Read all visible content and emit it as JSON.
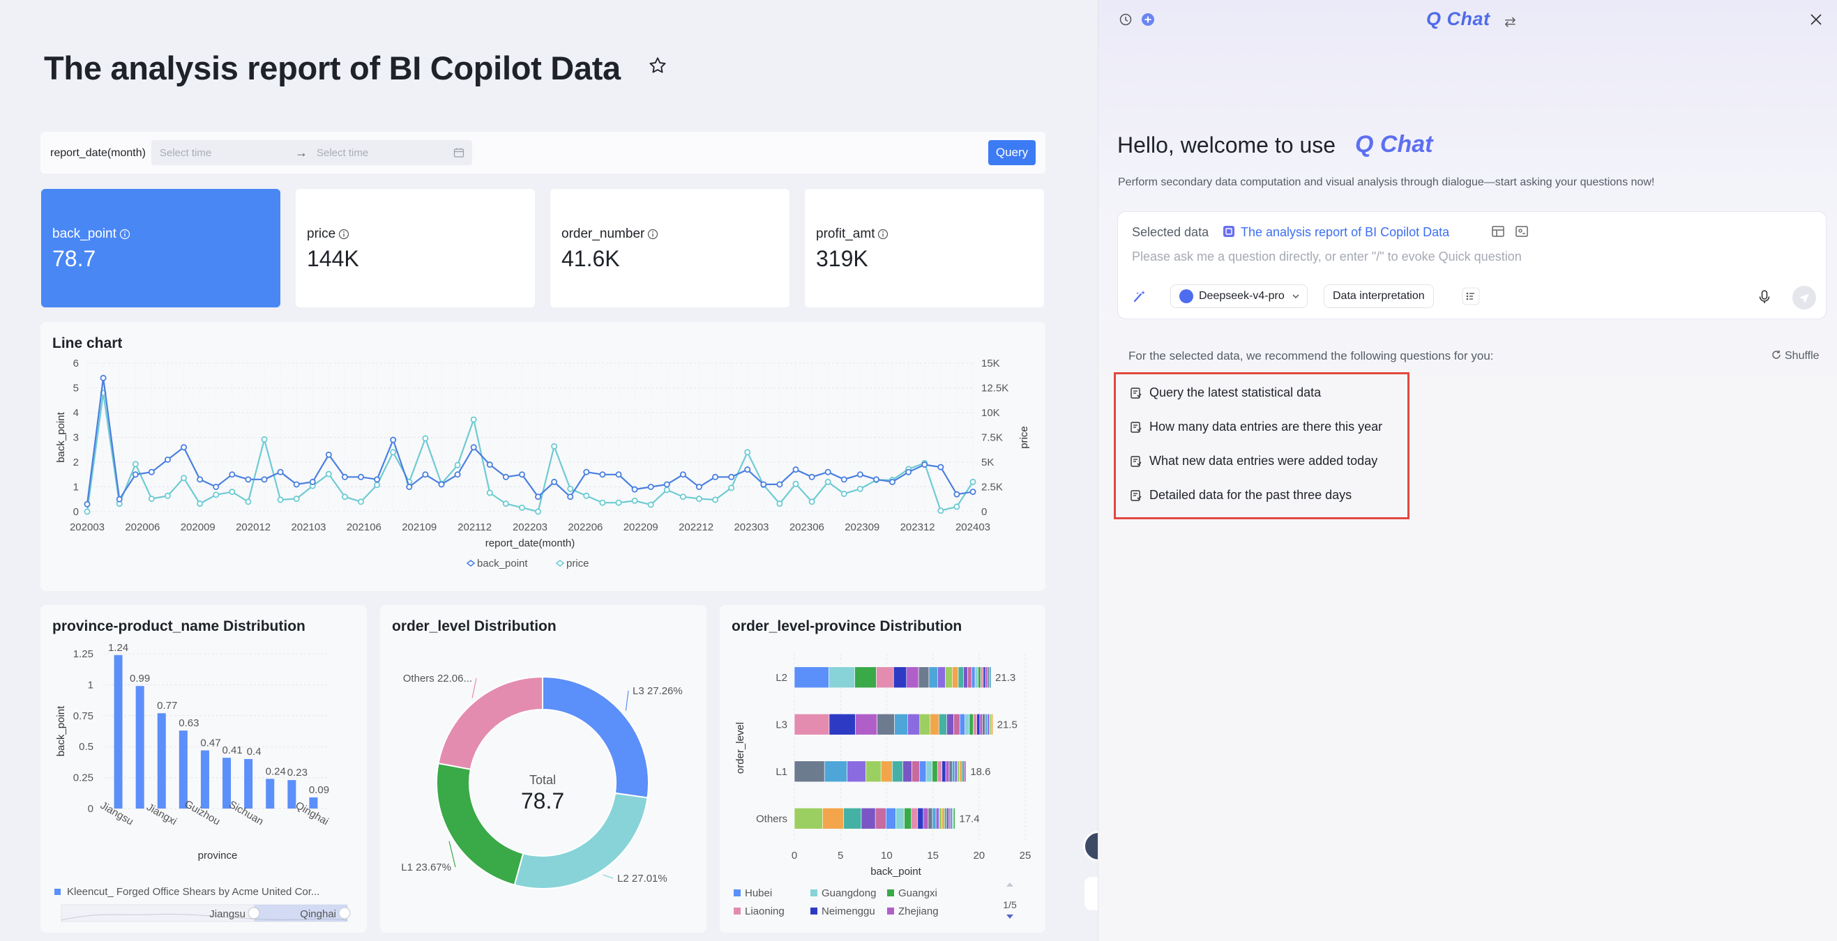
{
  "report": {
    "title": "The analysis report of BI Copilot Data",
    "filter": {
      "label": "report_date(month)",
      "start_placeholder": "Select time",
      "end_placeholder": "Select time",
      "separator": "→",
      "query_label": "Query"
    },
    "kpis": [
      {
        "label": "back_point",
        "value": "78.7",
        "active": true
      },
      {
        "label": "price",
        "value": "144K",
        "active": false
      },
      {
        "label": "order_number",
        "value": "41.6K",
        "active": false
      },
      {
        "label": "profit_amt",
        "value": "319K",
        "active": false
      }
    ]
  },
  "line_chart": {
    "title": "Line chart",
    "chart_data": {
      "type": "line",
      "xlabel": "report_date(month)",
      "ylabel": "back_point",
      "y2label": "price",
      "ylim": [
        0,
        6
      ],
      "y2lim": [
        0,
        15000
      ],
      "x_ticks": [
        "202003",
        "202006",
        "202009",
        "202012",
        "202103",
        "202106",
        "202109",
        "202112",
        "202203",
        "202206",
        "202209",
        "202212",
        "202303",
        "202306",
        "202309",
        "202312",
        "202403"
      ],
      "y_ticks": [
        "0",
        "1",
        "2",
        "3",
        "4",
        "5",
        "6"
      ],
      "y2_ticks": [
        "0",
        "2.5K",
        "5K",
        "7.5K",
        "10K",
        "12.5K",
        "15K"
      ],
      "legend": "bottom",
      "series": [
        {
          "name": "back_point",
          "color": "#4a7fe0",
          "axis": "left",
          "values": [
            0.3,
            5.4,
            0.5,
            1.5,
            1.6,
            2.1,
            2.6,
            1.3,
            1.0,
            1.5,
            1.3,
            1.3,
            1.6,
            1.1,
            1.2,
            2.3,
            1.4,
            1.4,
            1.3,
            2.9,
            1.0,
            1.5,
            1.1,
            1.5,
            2.6,
            1.9,
            1.4,
            1.5,
            0.6,
            1.2,
            0.6,
            1.6,
            1.5,
            1.5,
            0.9,
            1.0,
            1.1,
            1.5,
            1.0,
            1.4,
            1.4,
            1.7,
            1.1,
            1.1,
            1.7,
            1.4,
            1.6,
            1.3,
            1.5,
            1.3,
            1.2,
            1.6,
            1.9,
            1.8,
            0.7,
            0.8
          ]
        },
        {
          "name": "price",
          "color": "#6dcbd3",
          "axis": "right",
          "values": [
            0,
            12000,
            800,
            4800,
            1300,
            1600,
            3400,
            800,
            1700,
            2000,
            1000,
            7300,
            1200,
            1300,
            2600,
            3800,
            1500,
            1000,
            2700,
            6000,
            3000,
            7400,
            2800,
            4700,
            9300,
            1900,
            800,
            400,
            0,
            6600,
            2300,
            1600,
            900,
            900,
            1100,
            700,
            2200,
            1500,
            1300,
            1200,
            2400,
            6000,
            2700,
            800,
            2800,
            1000,
            3000,
            1800,
            2300,
            3200,
            3200,
            4300,
            4900,
            100,
            500,
            3000
          ]
        }
      ]
    }
  },
  "bar_chart": {
    "title": "province-product_name Distribution",
    "legend_label": "Kleencut_ Forged Office Shears by Acme United Cor...",
    "slider": {
      "start": "Jiangsu",
      "end": "Qinghai"
    },
    "chart_data": {
      "type": "bar",
      "xlabel": "province",
      "ylabel": "back_point",
      "ylim": [
        0,
        1.25
      ],
      "y_ticks": [
        "0",
        "0.25",
        "0.5",
        "0.75",
        "1",
        "1.25"
      ],
      "categories": [
        "Jiangsu",
        "",
        "Jiangxi",
        "",
        "Guizhou",
        "",
        "Sichuan",
        "",
        "",
        "Qinghai"
      ],
      "values": [
        1.24,
        0.99,
        0.77,
        0.63,
        0.47,
        0.41,
        0.4,
        0.24,
        0.23,
        0.09
      ],
      "labels": [
        "1.24",
        "0.99",
        "0.77",
        "0.63",
        "0.47",
        "0.41",
        "0.4",
        "0.24",
        "0.23",
        "0.09"
      ]
    }
  },
  "pie_chart": {
    "title": "order_level Distribution",
    "center_label": "Total",
    "center_value": "78.7",
    "chart_data": {
      "type": "pie",
      "slices": [
        {
          "name": "L3",
          "label": "L3 27.26%",
          "value": 27.26,
          "color": "#5b8ff9"
        },
        {
          "name": "L2",
          "label": "L2 27.01%",
          "value": 27.01,
          "color": "#87d3d8"
        },
        {
          "name": "L1",
          "label": "L1 23.67%",
          "value": 23.67,
          "color": "#3aa948"
        },
        {
          "name": "Others",
          "label": "Others 22.06...",
          "value": 22.06,
          "color": "#e38cb0"
        }
      ]
    }
  },
  "stack_chart": {
    "title": "order_level-province Distribution",
    "pager": "1/5",
    "chart_data": {
      "type": "bar",
      "orientation": "horizontal",
      "stacked": true,
      "xlabel": "back_point",
      "ylabel": "order_level",
      "xlim": [
        0,
        25
      ],
      "x_ticks": [
        "0",
        "5",
        "10",
        "15",
        "20",
        "25"
      ],
      "categories": [
        "L2",
        "L3",
        "L1",
        "Others"
      ],
      "totals": [
        21.3,
        21.5,
        18.6,
        17.4
      ],
      "total_labels": [
        "21.3",
        "21.5",
        "18.6",
        "17.4"
      ],
      "legend": [
        {
          "name": "Hubei",
          "color": "#5b8ff9"
        },
        {
          "name": "Guangdong",
          "color": "#87d3d8"
        },
        {
          "name": "Guangxi",
          "color": "#3aa948"
        },
        {
          "name": "Liaoning",
          "color": "#e38cb0"
        },
        {
          "name": "Neimenggu",
          "color": "#2d3bc4"
        },
        {
          "name": "Zhejiang",
          "color": "#b05fc9"
        }
      ]
    }
  },
  "chat": {
    "logo": "Q Chat",
    "welcome": "Hello, welcome to use",
    "subtitle": "Perform secondary data computation and visual analysis through dialogue—start asking your questions now!",
    "selected_label": "Selected data",
    "selected_name": "The analysis report of BI Copilot Data",
    "placeholder": "Please ask me a question directly, or enter \"/\" to evoke Quick question",
    "model": "Deepseek-v4-pro",
    "mode": "Data interpretation",
    "recommend_label": "For the selected data, we recommend the following questions for you:",
    "shuffle_label": "Shuffle",
    "suggestions": [
      "Query the latest statistical data",
      "How many data entries are there this year",
      "What new data entries were added today",
      "Detailed data for the past three days"
    ]
  }
}
